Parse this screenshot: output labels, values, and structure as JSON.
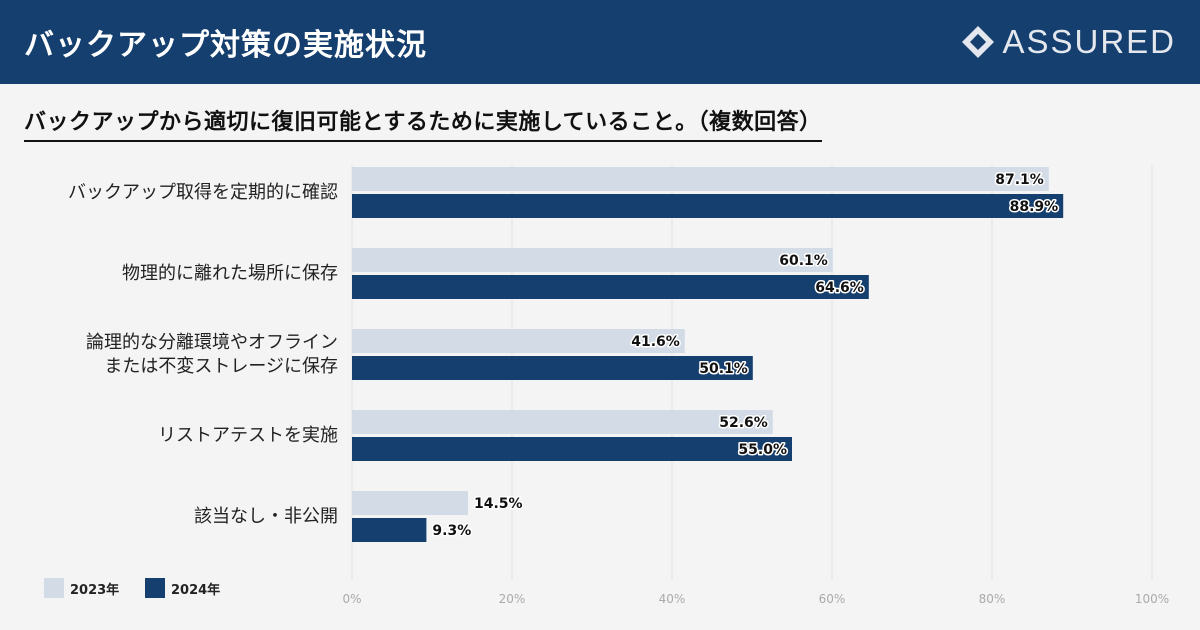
{
  "header": {
    "title": "バックアップ対策の実施状況",
    "brand": "ASSURED"
  },
  "subtitle": "バックアップから適切に復旧可能とするために実施していること。（複数回答）",
  "legend": {
    "items": [
      {
        "label": "2023年",
        "color": "#d3dce6"
      },
      {
        "label": "2024年",
        "color": "#153f6e"
      }
    ]
  },
  "chart_data": {
    "type": "bar",
    "orientation": "horizontal",
    "categories": [
      [
        "バックアップ取得を定期的に確認"
      ],
      [
        "物理的に離れた場所に保存"
      ],
      [
        "論理的な分離環境やオフライン",
        "または不変ストレージに保存"
      ],
      [
        "リストアテストを実施"
      ],
      [
        "該当なし・非公開"
      ]
    ],
    "series": [
      {
        "name": "2023年",
        "color": "#d3dce6",
        "values": [
          87.1,
          60.1,
          41.6,
          52.6,
          14.5
        ],
        "labels": [
          "87.1%",
          "60.1%",
          "41.6%",
          "52.6%",
          "14.5%"
        ]
      },
      {
        "name": "2024年",
        "color": "#153f6e",
        "values": [
          88.9,
          64.6,
          50.1,
          55.0,
          9.3
        ],
        "labels": [
          "88.9%",
          "64.6%",
          "50.1%",
          "55.0%",
          "9.3%"
        ]
      }
    ],
    "xlim": [
      0,
      100
    ],
    "xticks": [
      0,
      20,
      40,
      60,
      80,
      100
    ],
    "xtick_labels": [
      "0%",
      "20%",
      "40%",
      "60%",
      "80%",
      "100%"
    ],
    "grid": true
  }
}
